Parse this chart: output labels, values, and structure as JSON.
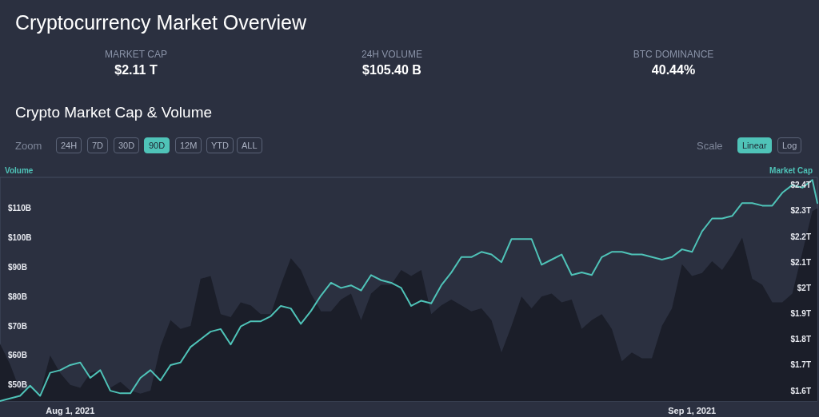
{
  "chart_data": {
    "type": "area",
    "title": "Cryptocurrency Market Overview",
    "subtitle": "Crypto Market Cap & Volume",
    "annotations": [
      "MARKET CAP",
      "$2.11 T",
      "24H VOLUME",
      "$105.40 B",
      "BTC DOMINANCE",
      "40.44%",
      "Zoom",
      "24H",
      "7D",
      "30D",
      "90D",
      "12M",
      "YTD",
      "ALL",
      "Scale",
      "Linear",
      "Log"
    ],
    "ylabel": "Volume",
    "y2label": "Market Cap",
    "x": [
      "2021-07-28T12:00",
      "2021-07-29T00:00",
      "2021-07-29T12:00",
      "2021-07-30T00:00",
      "2021-07-30T12:00",
      "2021-07-31T00:00",
      "2021-07-31T12:00",
      "2021-08-01T00:00",
      "2021-08-01T12:00",
      "2021-08-02T00:00",
      "2021-08-02T12:00",
      "2021-08-03T00:00",
      "2021-08-03T12:00",
      "2021-08-04T00:00",
      "2021-08-04T12:00",
      "2021-08-05T00:00",
      "2021-08-05T12:00",
      "2021-08-06T00:00",
      "2021-08-06T12:00",
      "2021-08-07T00:00",
      "2021-08-07T12:00",
      "2021-08-08T00:00",
      "2021-08-08T12:00",
      "2021-08-09T00:00",
      "2021-08-09T12:00",
      "2021-08-10T00:00",
      "2021-08-10T12:00",
      "2021-08-11T00:00",
      "2021-08-11T12:00",
      "2021-08-12T00:00",
      "2021-08-12T12:00",
      "2021-08-13T00:00",
      "2021-08-13T12:00",
      "2021-08-14T00:00",
      "2021-08-14T12:00",
      "2021-08-15T00:00",
      "2021-08-15T12:00",
      "2021-08-16T00:00",
      "2021-08-16T12:00",
      "2021-08-17T00:00",
      "2021-08-17T12:00",
      "2021-08-18T00:00",
      "2021-08-18T12:00",
      "2021-08-19T00:00",
      "2021-08-19T12:00",
      "2021-08-20T00:00",
      "2021-08-20T12:00",
      "2021-08-21T00:00",
      "2021-08-21T12:00",
      "2021-08-22T00:00",
      "2021-08-22T12:00",
      "2021-08-23T00:00",
      "2021-08-23T12:00",
      "2021-08-24T00:00",
      "2021-08-24T12:00",
      "2021-08-25T00:00",
      "2021-08-25T12:00",
      "2021-08-26T00:00",
      "2021-08-26T12:00",
      "2021-08-27T00:00",
      "2021-08-27T12:00",
      "2021-08-28T00:00",
      "2021-08-28T12:00",
      "2021-08-29T00:00",
      "2021-08-29T12:00",
      "2021-08-30T00:00",
      "2021-08-30T12:00",
      "2021-08-31T00:00",
      "2021-08-31T12:00",
      "2021-09-01T00:00",
      "2021-09-01T12:00",
      "2021-09-02T00:00",
      "2021-09-02T12:00",
      "2021-09-03T00:00",
      "2021-09-03T12:00",
      "2021-09-04T00:00",
      "2021-09-04T12:00",
      "2021-09-05T00:00",
      "2021-09-05T12:00",
      "2021-09-06T00:00",
      "2021-09-06T12:00",
      "2021-09-07T00:00",
      "2021-09-07T06:00"
    ],
    "series": [
      {
        "color": "#1b1e29",
        "axis": "y",
        "values": [
          64,
          57,
          48,
          49,
          47,
          60,
          54,
          50,
          49,
          54,
          55,
          49,
          51,
          48,
          47,
          48,
          63,
          72,
          69,
          70,
          86,
          87,
          74,
          73,
          78,
          77,
          74,
          74,
          84,
          93,
          89,
          81,
          75,
          75,
          79,
          81,
          72,
          81,
          84,
          84,
          89,
          87,
          89,
          74,
          77,
          79,
          77,
          75,
          76,
          72,
          61,
          70,
          80,
          76,
          80,
          81,
          78,
          79,
          69,
          72,
          74,
          69,
          58,
          61,
          59,
          59,
          70,
          76,
          91,
          87,
          88,
          92,
          89,
          94,
          100,
          86,
          84,
          78,
          78,
          81,
          95,
          109,
          110
        ]
      },
      {
        "type": "line",
        "color": "#4fc3b8",
        "axis": "y2",
        "values": [
          1.56,
          1.57,
          1.58,
          1.62,
          1.58,
          1.67,
          1.68,
          1.7,
          1.71,
          1.65,
          1.68,
          1.6,
          1.59,
          1.59,
          1.65,
          1.68,
          1.64,
          1.7,
          1.71,
          1.77,
          1.8,
          1.83,
          1.84,
          1.78,
          1.85,
          1.87,
          1.87,
          1.89,
          1.93,
          1.92,
          1.86,
          1.91,
          1.97,
          2.02,
          2.0,
          2.01,
          1.99,
          2.05,
          2.03,
          2.02,
          2.0,
          1.93,
          1.95,
          1.94,
          2.01,
          2.06,
          2.12,
          2.12,
          2.14,
          2.13,
          2.1,
          2.19,
          2.19,
          2.19,
          2.09,
          2.11,
          2.13,
          2.05,
          2.06,
          2.05,
          2.12,
          2.14,
          2.14,
          2.13,
          2.13,
          2.12,
          2.11,
          2.12,
          2.15,
          2.14,
          2.22,
          2.27,
          2.27,
          2.28,
          2.33,
          2.33,
          2.32,
          2.32,
          2.37,
          2.4,
          2.39,
          2.42,
          2.33
        ]
      }
    ],
    "xlim": [
      "2021-07-28T12:00",
      "2021-09-07T06:00"
    ],
    "xticks": [
      {
        "value": "2021-08-01T00:00",
        "label": "Aug 1, 2021"
      },
      {
        "value": "2021-09-01T00:00",
        "label": "Sep 1, 2021"
      }
    ],
    "ylim": [
      44.5,
      120.5
    ],
    "yticks": [
      {
        "value": 50,
        "label": "$50B"
      },
      {
        "value": 60,
        "label": "$60B"
      },
      {
        "value": 70,
        "label": "$70B"
      },
      {
        "value": 80,
        "label": "$80B"
      },
      {
        "value": 90,
        "label": "$90B"
      },
      {
        "value": 100,
        "label": "$100B"
      },
      {
        "value": 110,
        "label": "$110B"
      }
    ],
    "y2lim": [
      1.56,
      2.43
    ],
    "y2ticks": [
      {
        "value": 1.6,
        "label": "$1.6T"
      },
      {
        "value": 1.7,
        "label": "$1.7T"
      },
      {
        "value": 1.8,
        "label": "$1.8T"
      },
      {
        "value": 1.9,
        "label": "$1.9T"
      },
      {
        "value": 2,
        "label": "$2T"
      },
      {
        "value": 2.1,
        "label": "$2.1T"
      },
      {
        "value": 2.2,
        "label": "$2.2T"
      },
      {
        "value": 2.3,
        "label": "$2.3T"
      },
      {
        "value": 2.4,
        "label": "$2.4T"
      }
    ]
  }
}
